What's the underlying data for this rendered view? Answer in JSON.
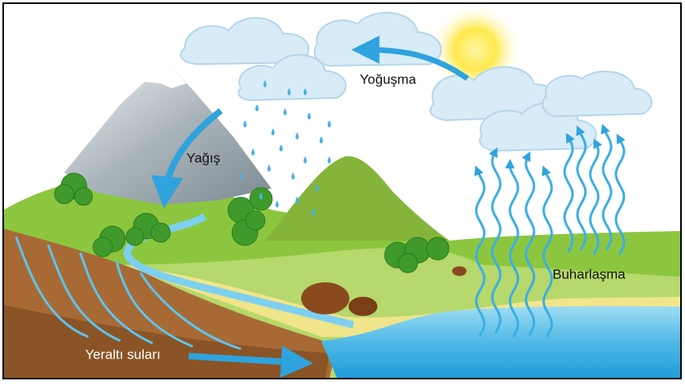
{
  "labels": {
    "condensation": "Yoğuşma",
    "precipitation": "Yağış",
    "evaporation": "Buharlaşma",
    "groundwater": "Yeraltı suları"
  }
}
